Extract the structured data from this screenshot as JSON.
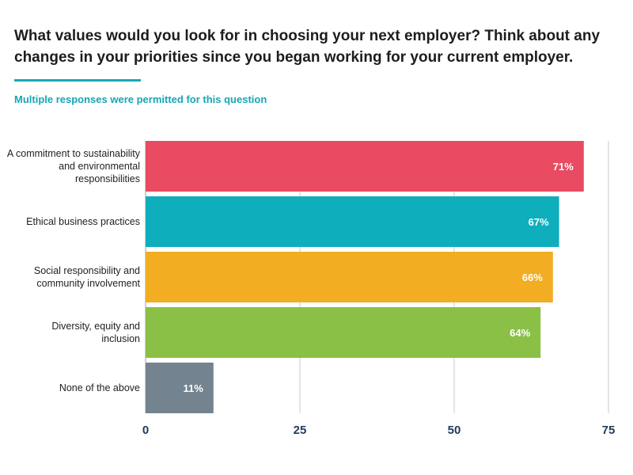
{
  "header": {
    "title": "What values would you look for in choosing your next employer? Think about any changes in your priorities since you began working for your current employer.",
    "subtitle": "Multiple responses were permitted for this question"
  },
  "chart_data": {
    "type": "bar",
    "orientation": "horizontal",
    "categories": [
      [
        "A commitment to sustainability",
        "and environmental",
        "responsibilities"
      ],
      [
        "Ethical business practices"
      ],
      [
        "Social responsibility and",
        "community involvement"
      ],
      [
        "Diversity, equity and",
        "inclusion"
      ],
      [
        "None of the above"
      ]
    ],
    "values": [
      71,
      67,
      66,
      64,
      11
    ],
    "value_labels": [
      "71%",
      "67%",
      "66%",
      "64%",
      "11%"
    ],
    "colors": [
      "#e84b62",
      "#0faebd",
      "#f2ad22",
      "#8ac045",
      "#738390"
    ],
    "xlim": [
      0,
      75
    ],
    "xticks": [
      0,
      25,
      50,
      75
    ],
    "grid": true
  }
}
